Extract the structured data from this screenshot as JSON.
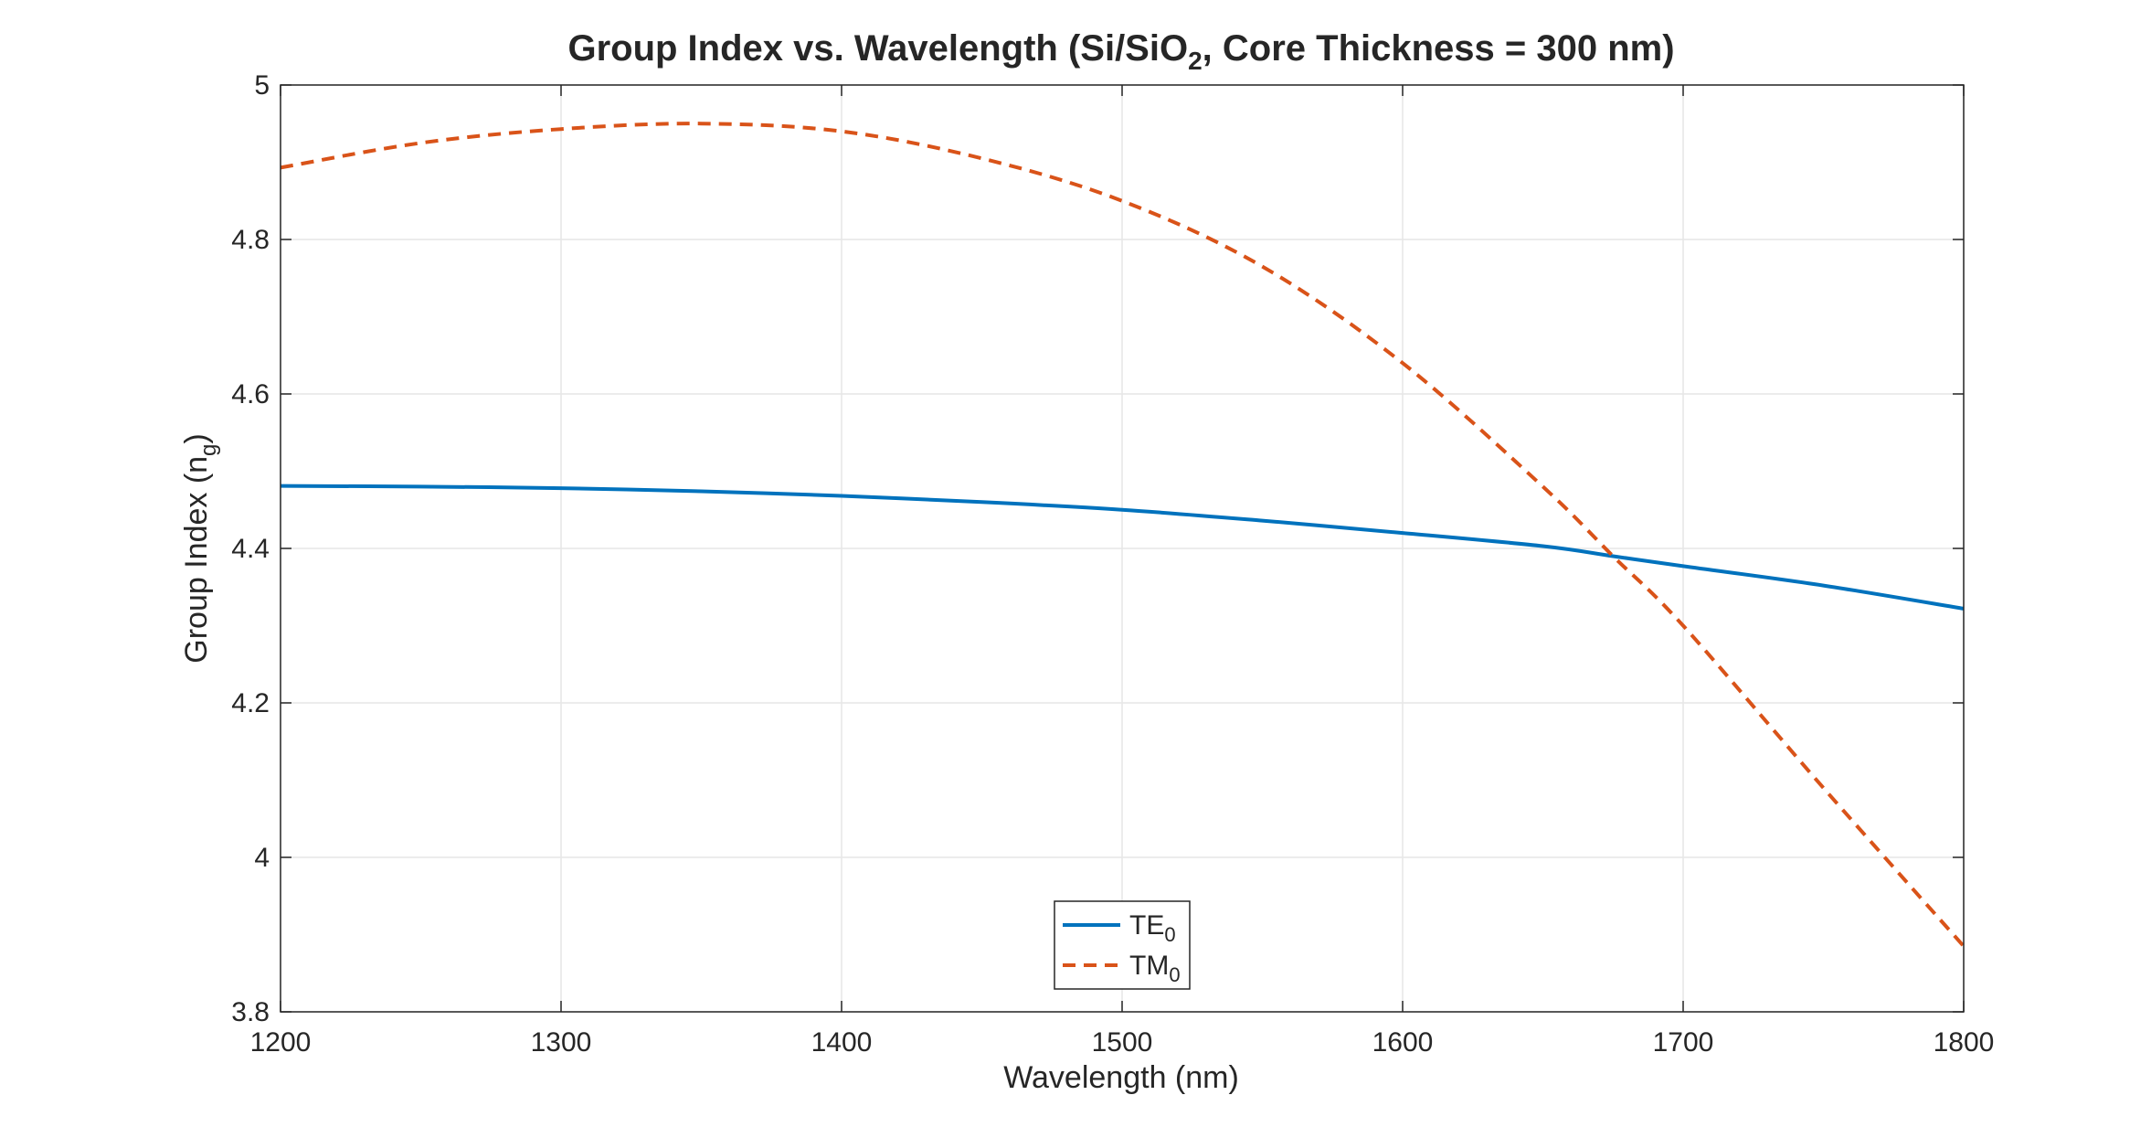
{
  "chart_data": {
    "type": "line",
    "title": {
      "main": "Group Index vs. Wavelength (Si/SiO",
      "sub": "2",
      "tail": ", Core Thickness = 300 nm)"
    },
    "xlabel": "Wavelength (nm)",
    "ylabel": {
      "main": "Group Index (n",
      "sub": "g",
      "tail": ")"
    },
    "xlim": [
      1200,
      1800
    ],
    "ylim": [
      3.8,
      5.0
    ],
    "xticks": [
      1200,
      1300,
      1400,
      1500,
      1600,
      1700,
      1800
    ],
    "yticks": [
      3.8,
      4.0,
      4.2,
      4.4,
      4.6,
      4.8,
      5.0
    ],
    "ytick_labels": [
      "3.8",
      "4",
      "4.2",
      "4.4",
      "4.6",
      "4.8",
      "5"
    ],
    "grid": true,
    "legend_position": "bottom-center",
    "x": [
      1200,
      1250,
      1300,
      1350,
      1400,
      1450,
      1500,
      1550,
      1600,
      1650,
      1675,
      1700,
      1750,
      1800
    ],
    "series": [
      {
        "name": "TE",
        "name_sub": "0",
        "color": "#0072BD",
        "style": "solid",
        "values": [
          4.481,
          4.48,
          4.478,
          4.474,
          4.468,
          4.46,
          4.45,
          4.436,
          4.42,
          4.403,
          4.39,
          4.377,
          4.352,
          4.322
        ]
      },
      {
        "name": "TM",
        "name_sub": "0",
        "color": "#D95319",
        "style": "dashed",
        "values": [
          4.893,
          4.925,
          4.943,
          4.95,
          4.94,
          4.905,
          4.85,
          4.765,
          4.64,
          4.48,
          4.39,
          4.3,
          4.09,
          3.885
        ]
      }
    ]
  }
}
